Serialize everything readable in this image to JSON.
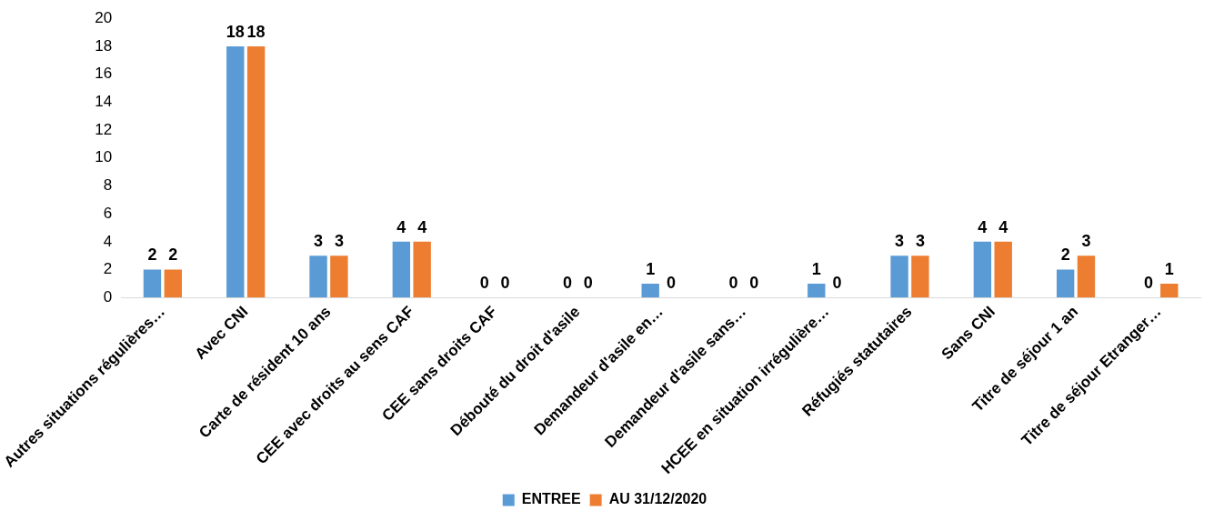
{
  "chart_data": {
    "type": "bar",
    "categories": [
      "Autres situations régulières…",
      "Avec CNI",
      "Carte de résident 10 ans",
      "CEE avec droits au sens CAF",
      "CEE sans droits CAF",
      "Débouté du droit d'asile",
      "Demandeur d'asile en…",
      "Demandeur d'asile sans…",
      "HCEE en situation irrégulière…",
      "Réfugiés statutaires",
      "Sans CNI",
      "Titre de séjour 1 an",
      "Titre de séjour Etranger…"
    ],
    "series": [
      {
        "name": "ENTREE",
        "color": "#5b9bd5",
        "values": [
          2,
          18,
          3,
          4,
          0,
          0,
          1,
          0,
          1,
          3,
          4,
          2,
          0
        ]
      },
      {
        "name": "AU 31/12/2020",
        "color": "#ed7d31",
        "values": [
          2,
          18,
          3,
          4,
          0,
          0,
          0,
          0,
          0,
          3,
          4,
          3,
          1
        ]
      }
    ],
    "ylim": [
      0,
      20
    ],
    "yticks": [
      0,
      2,
      4,
      6,
      8,
      10,
      12,
      14,
      16,
      18,
      20
    ],
    "grid": false,
    "legend": "bottom",
    "data_labels": true
  }
}
